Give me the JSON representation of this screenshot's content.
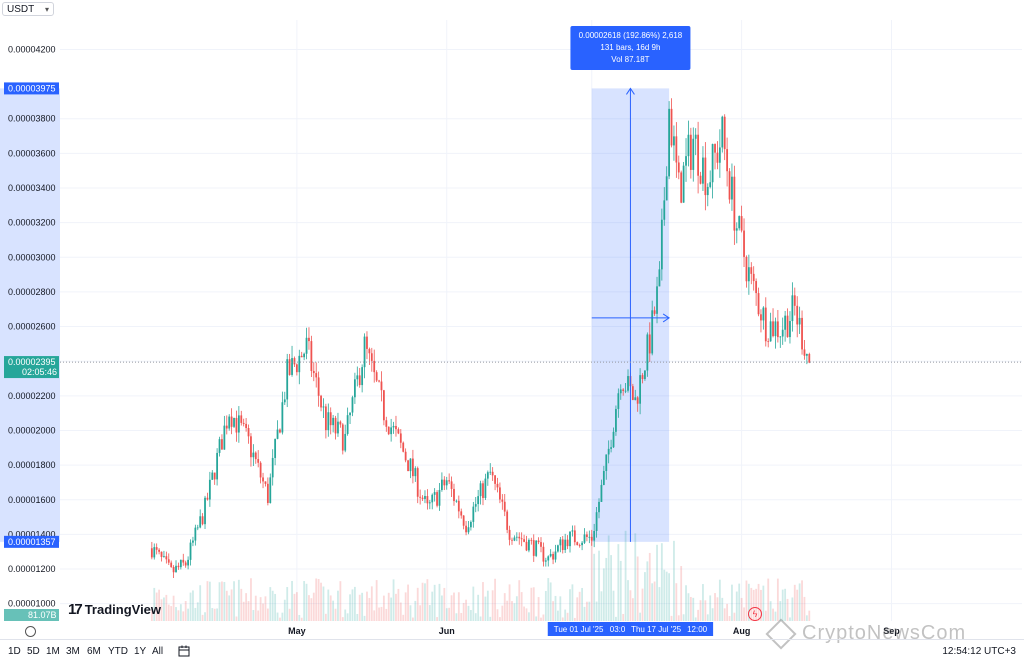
{
  "symbol": {
    "label": "USDT"
  },
  "chart_data": {
    "type": "candlestick",
    "y_axis": {
      "ticks": [
        "0.00001000",
        "0.00001200",
        "0.00001400",
        "0.00001600",
        "0.00001800",
        "0.00002000",
        "0.00002200",
        "0.00002400",
        "0.00002600",
        "0.00002800",
        "0.00003000",
        "0.00003200",
        "0.00003400",
        "0.00003600",
        "0.00003800",
        "0.00004200"
      ],
      "ylim": [
        9e-06,
        4.37e-05
      ]
    },
    "x_axis": {
      "ticks": [
        "May",
        "Jun",
        "Jul",
        "Aug",
        "Sep"
      ]
    },
    "price_series": {
      "x": [
        "2025-04-01",
        "2025-04-05",
        "2025-04-08",
        "2025-04-12",
        "2025-04-17",
        "2025-04-21",
        "2025-04-25",
        "2025-04-29",
        "2025-05-03",
        "2025-05-07",
        "2025-05-11",
        "2025-05-15",
        "2025-05-19",
        "2025-05-24",
        "2025-05-28",
        "2025-06-01",
        "2025-06-05",
        "2025-06-10",
        "2025-06-14",
        "2025-06-18",
        "2025-06-22",
        "2025-06-26",
        "2025-07-01",
        "2025-07-04",
        "2025-07-07",
        "2025-07-10",
        "2025-07-13",
        "2025-07-15",
        "2025-07-17",
        "2025-07-19",
        "2025-07-22",
        "2025-07-25",
        "2025-07-28",
        "2025-07-31",
        "2025-08-03",
        "2025-08-06",
        "2025-08-09",
        "2025-08-12",
        "2025-08-15"
      ],
      "close": [
        1.32e-05,
        1.18e-05,
        1.23e-05,
        1.55e-05,
        2.12e-05,
        1.93e-05,
        1.62e-05,
        2.32e-05,
        2.48e-05,
        2.05e-05,
        1.95e-05,
        2.48e-05,
        2.11e-05,
        1.82e-05,
        1.54e-05,
        1.71e-05,
        1.46e-05,
        1.75e-05,
        1.42e-05,
        1.35e-05,
        1.26e-05,
        1.38e-05,
        1.38e-05,
        1.8e-05,
        2.32e-05,
        2.17e-05,
        2.52e-05,
        2.85e-05,
        3.86e-05,
        3.38e-05,
        3.68e-05,
        3.45e-05,
        3.7e-05,
        3.18e-05,
        2.85e-05,
        2.62e-05,
        2.59e-05,
        2.7e-05,
        2.4e-05
      ]
    },
    "current_price": {
      "value": 2.395e-05,
      "label": "0.00002395",
      "countdown": "02:05:46"
    },
    "volume_label": "81.07B",
    "range_measure": {
      "from_price": 1.357e-05,
      "from_label": "0.00001357",
      "to_price": 3.975e-05,
      "to_label": "0.00003975",
      "from_date": "2025-07-01",
      "to_date": "2025-07-17",
      "from_date_label": "Tue 01 Jul '25",
      "from_time_label": "03:00",
      "to_date_label": "Thu 17 Jul '25",
      "to_time_label": "12:00",
      "tooltip_line1": "0.00002618 (192.86%) 2,618",
      "tooltip_line2": "131 bars, 16d 9h",
      "tooltip_line3": "Vol 87.18T"
    },
    "colors": {
      "up": "#26a69a",
      "down": "#ef5350",
      "measure": "#2962ff",
      "price_tag": "#26a69a"
    }
  },
  "timeframes": [
    "1D",
    "5D",
    "1M",
    "3M",
    "6M",
    "YTD",
    "1Y",
    "All"
  ],
  "clock": "12:54:12 UTC+3",
  "branding": {
    "logo": "TradingView",
    "watermark": "CryptoNewsCom"
  }
}
